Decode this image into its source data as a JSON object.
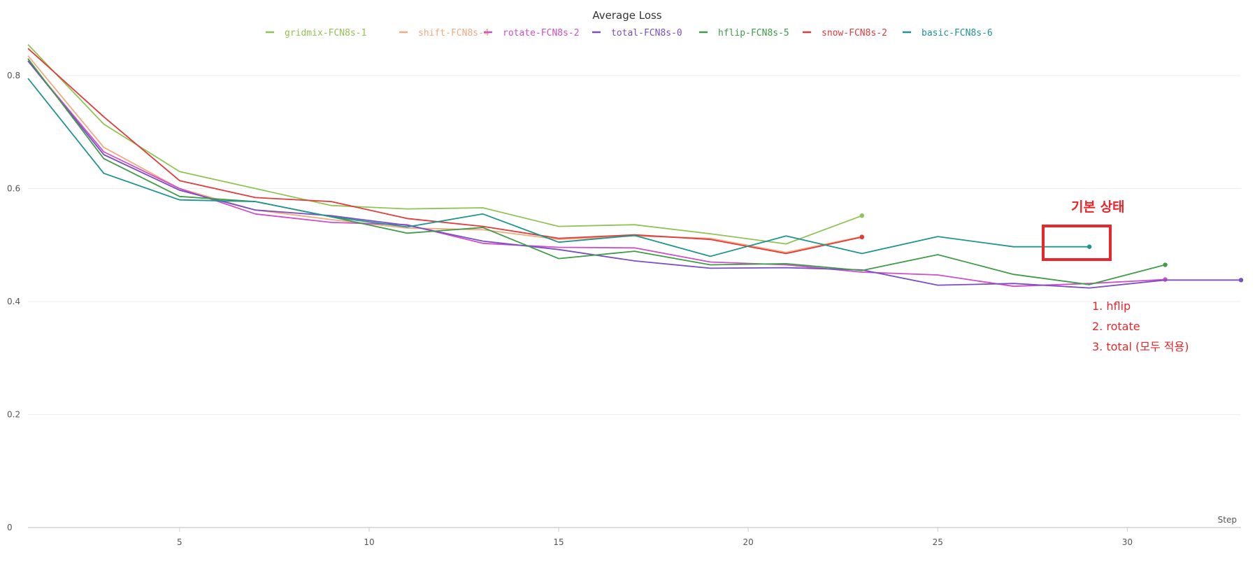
{
  "chart_data": {
    "type": "line",
    "title": "Average Loss",
    "xlabel": "Step",
    "ylabel": "",
    "xlim": [
      1,
      33
    ],
    "ylim": [
      0,
      0.85
    ],
    "x_ticks": [
      5,
      10,
      15,
      20,
      25,
      30
    ],
    "y_ticks": [
      0,
      0.2,
      0.4,
      0.6,
      0.8
    ],
    "x_tick_labels": [
      "5",
      "10",
      "15",
      "20",
      "25",
      "30"
    ],
    "y_tick_labels": [
      "0",
      "0.2",
      "0.4",
      "0.6",
      "0.8"
    ],
    "grid": true,
    "legend_position": "top",
    "series": [
      {
        "name": "gridmix-FCN8s-1",
        "color": "#8fc454",
        "x": [
          1,
          3,
          5,
          7,
          9,
          11,
          13,
          15,
          17,
          19,
          21,
          23
        ],
        "y": [
          0.855,
          0.714,
          0.63,
          0.6,
          0.57,
          0.564,
          0.566,
          0.533,
          0.536,
          0.52,
          0.502,
          0.552
        ]
      },
      {
        "name": "shift-FCN8s-4",
        "color": "#f4a97e",
        "x": [
          1,
          3,
          5,
          7,
          9,
          11,
          13,
          15,
          17,
          19,
          21,
          23
        ],
        "y": [
          0.835,
          0.673,
          0.6,
          0.562,
          0.545,
          0.53,
          0.527,
          0.51,
          0.516,
          0.512,
          0.487,
          0.515
        ]
      },
      {
        "name": "rotate-FCN8s-2",
        "color": "#cf4ecb",
        "x": [
          1,
          3,
          5,
          7,
          9,
          11,
          13,
          15,
          17,
          19,
          21,
          23,
          25,
          27,
          29,
          31
        ],
        "y": [
          0.826,
          0.665,
          0.6,
          0.555,
          0.54,
          0.536,
          0.503,
          0.496,
          0.495,
          0.47,
          0.465,
          0.452,
          0.447,
          0.427,
          0.432,
          0.439
        ]
      },
      {
        "name": "total-FCN8s-0",
        "color": "#7a4ec4",
        "x": [
          1,
          3,
          5,
          7,
          9,
          11,
          13,
          15,
          17,
          19,
          21,
          23,
          25,
          27,
          29,
          31,
          33
        ],
        "y": [
          0.826,
          0.66,
          0.597,
          0.562,
          0.552,
          0.535,
          0.507,
          0.492,
          0.472,
          0.459,
          0.46,
          0.456,
          0.429,
          0.432,
          0.424,
          0.438,
          0.438
        ]
      },
      {
        "name": "hflip-FCN8s-5",
        "color": "#3f9c47",
        "x": [
          1,
          3,
          5,
          7,
          9,
          11,
          13,
          15,
          17,
          19,
          21,
          23,
          25,
          27,
          29,
          31
        ],
        "y": [
          0.83,
          0.653,
          0.586,
          0.577,
          0.55,
          0.521,
          0.531,
          0.476,
          0.489,
          0.465,
          0.467,
          0.455,
          0.483,
          0.448,
          0.43,
          0.465
        ]
      },
      {
        "name": "snow-FCN8s-2",
        "color": "#e23b3b",
        "x": [
          1,
          3,
          5,
          7,
          9,
          11,
          13,
          15,
          17,
          19,
          21,
          23
        ],
        "y": [
          0.848,
          0.727,
          0.614,
          0.584,
          0.577,
          0.547,
          0.533,
          0.512,
          0.518,
          0.51,
          0.485,
          0.514
        ]
      },
      {
        "name": "basic-FCN8s-6",
        "color": "#1f9590",
        "x": [
          1,
          3,
          5,
          7,
          9,
          11,
          13,
          15,
          17,
          19,
          21,
          23,
          25,
          27,
          29
        ],
        "y": [
          0.795,
          0.627,
          0.58,
          0.577,
          0.55,
          0.532,
          0.555,
          0.505,
          0.517,
          0.48,
          0.516,
          0.485,
          0.515,
          0.497,
          0.497
        ]
      }
    ],
    "annotations": {
      "box_label": "기본 상태",
      "box_color": "#e8262b",
      "list": [
        "1. hflip",
        "2. rotate",
        "3. total (모두 적용)"
      ]
    }
  }
}
